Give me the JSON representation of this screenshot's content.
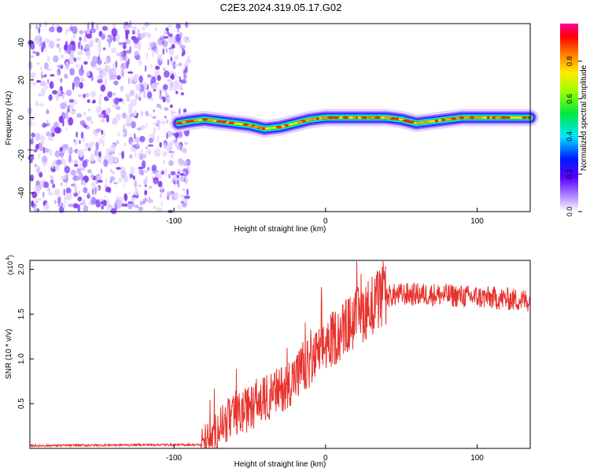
{
  "title": "C2E3.2024.319.05.17.G02",
  "chart_data": [
    {
      "type": "heatmap",
      "xlabel": "Height of straight line (km)",
      "ylabel": "Frequency (Hz)",
      "xlim": [
        -195,
        135
      ],
      "ylim": [
        -50,
        50
      ],
      "xticks": [
        -100,
        0,
        100
      ],
      "yticks": [
        -40,
        -20,
        0,
        20,
        40
      ],
      "noise_region": [
        -195,
        -90
      ],
      "ridge": [
        [
          -97,
          -3
        ],
        [
          -90,
          -2
        ],
        [
          -80,
          -1
        ],
        [
          -70,
          -2
        ],
        [
          -60,
          -3
        ],
        [
          -50,
          -4
        ],
        [
          -40,
          -6
        ],
        [
          -30,
          -5
        ],
        [
          -20,
          -3
        ],
        [
          -10,
          -1
        ],
        [
          0,
          0
        ],
        [
          10,
          0
        ],
        [
          20,
          0
        ],
        [
          30,
          0
        ],
        [
          40,
          0
        ],
        [
          50,
          -1
        ],
        [
          60,
          -3
        ],
        [
          70,
          -2
        ],
        [
          80,
          -1
        ],
        [
          90,
          0
        ],
        [
          100,
          0
        ],
        [
          110,
          0
        ],
        [
          120,
          0
        ],
        [
          135,
          0
        ]
      ],
      "colorbar": {
        "label": "Normalized spectral amplitude",
        "range": [
          0,
          1
        ],
        "ticks": [
          "0.0",
          "0.2",
          "0.4",
          "0.6",
          "0.8"
        ]
      }
    },
    {
      "type": "line",
      "xlabel": "Height of straight line (km)",
      "ylabel": "SNR (10 * v/v)",
      "multiplier": "(x10",
      "multiplier_exp": "4",
      "xlim": [
        -195,
        135
      ],
      "ylim": [
        0,
        2.1
      ],
      "xticks": [
        -100,
        0,
        100
      ],
      "yticks": [
        "0.5",
        "1.0",
        "1.5",
        "2.0"
      ],
      "series": [
        {
          "color": "#e8322c",
          "profile": [
            [
              -195,
              0.03
            ],
            [
              -120,
              0.04
            ],
            [
              -82,
              0.04
            ],
            [
              -75,
              0.1
            ],
            [
              -70,
              0.25
            ],
            [
              -60,
              0.35
            ],
            [
              -50,
              0.45
            ],
            [
              -40,
              0.55
            ],
            [
              -30,
              0.65
            ],
            [
              -20,
              0.8
            ],
            [
              -10,
              0.95
            ],
            [
              0,
              1.15
            ],
            [
              10,
              1.3
            ],
            [
              20,
              1.45
            ],
            [
              30,
              1.6
            ],
            [
              40,
              1.7
            ],
            [
              50,
              1.72
            ],
            [
              70,
              1.72
            ],
            [
              90,
              1.7
            ],
            [
              110,
              1.68
            ],
            [
              135,
              1.65
            ]
          ]
        }
      ]
    }
  ]
}
